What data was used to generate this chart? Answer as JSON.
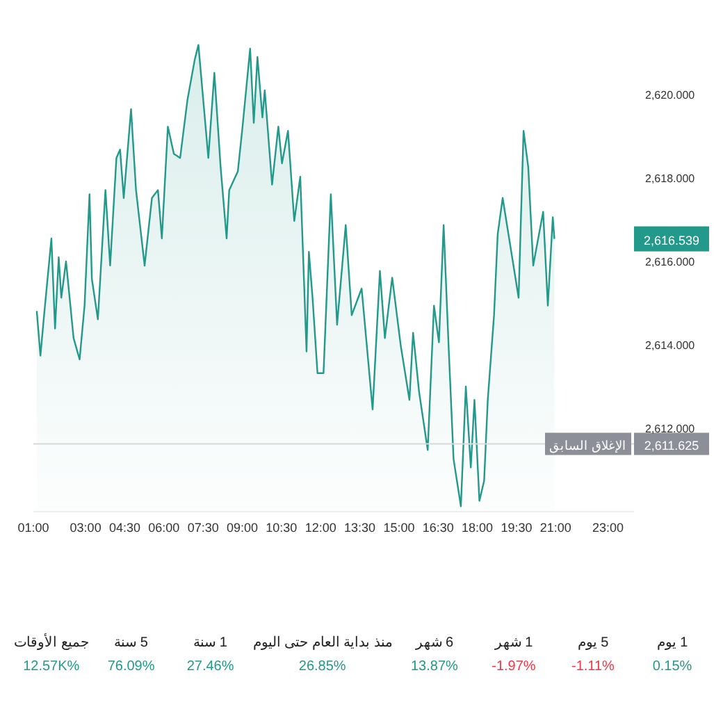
{
  "chart_data": [
    {
      "type": "area",
      "x": [
        1.13,
        1.27,
        1.41,
        1.69,
        1.83,
        1.97,
        2.07,
        2.25,
        2.54,
        2.77,
        2.96,
        3.15,
        3.24,
        3.47,
        3.76,
        3.94,
        4.18,
        4.32,
        4.46,
        4.74,
        4.93,
        5.26,
        5.54,
        5.77,
        5.92,
        6.15,
        6.38,
        6.62,
        6.9,
        7.18,
        7.32,
        7.46,
        7.7,
        7.93,
        8.17,
        8.4,
        8.5,
        8.83,
        9.01,
        9.3,
        9.44,
        9.58,
        9.77,
        9.86,
        10.14,
        10.38,
        10.52,
        10.75,
        10.99,
        11.22,
        11.46,
        11.55,
        11.69,
        11.88,
        12.11,
        12.39,
        12.63,
        12.96,
        13.19,
        13.57,
        13.99,
        14.27,
        14.46,
        14.74,
        15.07,
        15.4,
        15.54,
        15.77,
        16.1,
        16.34,
        16.53,
        16.71,
        16.9,
        17.09,
        17.37,
        17.56,
        17.75,
        17.89,
        18.08,
        18.26,
        18.4,
        18.64,
        18.78,
        18.97,
        19.3,
        19.58,
        19.77,
        19.95,
        20.14,
        20.52,
        20.7,
        20.89,
        20.95
      ],
      "series": [
        {
          "color": "#22998a",
          "values": [
            2614.81,
            2613.74,
            2614.71,
            2616.55,
            2614.39,
            2616.1,
            2615.13,
            2616.0,
            2614.16,
            2613.65,
            2614.94,
            2617.61,
            2615.58,
            2614.61,
            2617.71,
            2615.9,
            2618.48,
            2618.68,
            2617.52,
            2619.65,
            2617.71,
            2615.9,
            2617.52,
            2617.71,
            2616.55,
            2619.23,
            2618.58,
            2618.48,
            2619.87,
            2620.84,
            2621.19,
            2620.19,
            2618.48,
            2620.52,
            2618.26,
            2616.55,
            2617.71,
            2618.16,
            2619.23,
            2621.1,
            2619.32,
            2620.9,
            2619.45,
            2620.1,
            2617.84,
            2619.23,
            2618.35,
            2619.13,
            2616.97,
            2618.03,
            2613.84,
            2616.23,
            2615.13,
            2613.32,
            2613.32,
            2617.61,
            2614.48,
            2616.87,
            2614.71,
            2615.35,
            2612.45,
            2615.77,
            2614.16,
            2615.61,
            2613.97,
            2612.68,
            2614.29,
            2612.87,
            2611.48,
            2614.94,
            2614.06,
            2616.87,
            2613.97,
            2611.26,
            2610.13,
            2613.0,
            2611.06,
            2612.68,
            2610.26,
            2610.74,
            2612.68,
            2614.71,
            2616.65,
            2617.52,
            2616.23,
            2615.13,
            2619.13,
            2618.26,
            2615.9,
            2617.19,
            2614.94,
            2617.06,
            2616.54
          ]
        }
      ],
      "xlim": [
        1,
        24
      ],
      "xticks": [
        {
          "value": 1,
          "label": "01:00"
        },
        {
          "value": 3,
          "label": "03:00"
        },
        {
          "value": 4.5,
          "label": "04:30"
        },
        {
          "value": 6,
          "label": "06:00"
        },
        {
          "value": 7.5,
          "label": "07:30"
        },
        {
          "value": 9,
          "label": "09:00"
        },
        {
          "value": 10.5,
          "label": "10:30"
        },
        {
          "value": 12,
          "label": "12:00"
        },
        {
          "value": 13.5,
          "label": "13:30"
        },
        {
          "value": 15,
          "label": "15:00"
        },
        {
          "value": 16.5,
          "label": "16:30"
        },
        {
          "value": 18,
          "label": "18:00"
        },
        {
          "value": 19.5,
          "label": "19:30"
        },
        {
          "value": 21,
          "label": "21:00"
        },
        {
          "value": 23,
          "label": "23:00"
        }
      ],
      "ylim": [
        2610,
        2622
      ],
      "yticks": [
        {
          "value": 2612,
          "label": "2,612.000"
        },
        {
          "value": 2614,
          "label": "2,614.000"
        },
        {
          "value": 2616,
          "label": "2,616.000"
        },
        {
          "value": 2618,
          "label": "2,618.000"
        },
        {
          "value": 2620,
          "label": "2,620.000"
        }
      ],
      "ref_lines": [
        {
          "axis": "y",
          "value": 2611.625,
          "label": "الإغلاق السابق",
          "color": "#d9d9d9"
        }
      ],
      "annotations": [
        "2,611.625",
        "2,616.539"
      ],
      "grid": false,
      "legend": false
    },
    {
      "type": "other",
      "categories": [
        "جميع الأوقات",
        "5 سنة",
        "1 سنة",
        "منذ بداية العام حتى اليوم",
        "6 شهر",
        "1 شهر",
        "5 يوم",
        "1 يوم"
      ],
      "value_labels": [
        "12.57K%",
        "76.09%",
        "27.46%",
        "26.85%",
        "13.87%",
        "-1.97%",
        "-1.11%",
        "0.15%"
      ],
      "colors": [
        "#22998a",
        "#22998a",
        "#22998a",
        "#22998a",
        "#22998a",
        "#f23645",
        "#f23645",
        "#22998a"
      ]
    }
  ]
}
